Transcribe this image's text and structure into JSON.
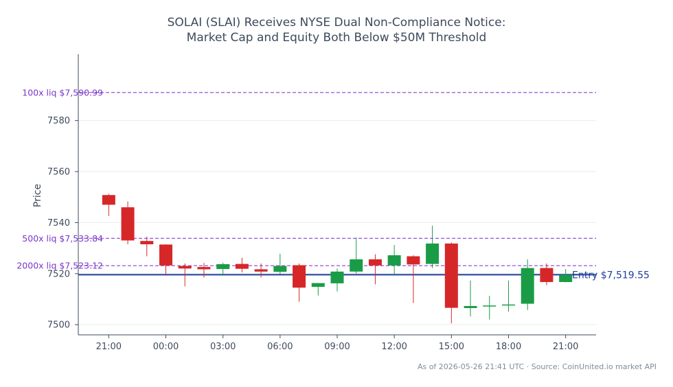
{
  "chart_data": {
    "type": "candlestick",
    "title_lines": [
      "SOLAI (SLAI) Receives NYSE Dual Non-Compliance Notice:",
      "Market Cap and Equity Both Below $50M Threshold"
    ],
    "xlabel": "",
    "ylabel": "Price",
    "ylim": [
      7496,
      7606
    ],
    "yticks": [
      7500,
      7520,
      7540,
      7560,
      7580
    ],
    "xlim": [
      -1.6,
      25.6
    ],
    "xticks": [
      {
        "i": 0,
        "label": "21:00"
      },
      {
        "i": 3,
        "label": "00:00"
      },
      {
        "i": 6,
        "label": "03:00"
      },
      {
        "i": 9,
        "label": "06:00"
      },
      {
        "i": 12,
        "label": "09:00"
      },
      {
        "i": 15,
        "label": "12:00"
      },
      {
        "i": 18,
        "label": "15:00"
      },
      {
        "i": 21,
        "label": "18:00"
      },
      {
        "i": 24,
        "label": "21:00"
      }
    ],
    "grid": true,
    "colors": {
      "up": "#1a9c47",
      "down": "#d62728",
      "entry": "#1f3f99",
      "liq": "#8b3fd1"
    },
    "candles": [
      {
        "o": 7550.8,
        "h": 7551.2,
        "l": 7542.6,
        "c": 7547.0
      },
      {
        "o": 7546.0,
        "h": 7548.3,
        "l": 7531.5,
        "c": 7533.0
      },
      {
        "o": 7532.8,
        "h": 7534.5,
        "l": 7526.8,
        "c": 7531.5
      },
      {
        "o": 7531.4,
        "h": 7531.5,
        "l": 7519.2,
        "c": 7523.2
      },
      {
        "o": 7523.0,
        "h": 7524.0,
        "l": 7515.0,
        "c": 7522.0
      },
      {
        "o": 7522.6,
        "h": 7524.2,
        "l": 7518.5,
        "c": 7521.7
      },
      {
        "o": 7521.8,
        "h": 7524.3,
        "l": 7519.2,
        "c": 7523.7
      },
      {
        "o": 7523.8,
        "h": 7526.2,
        "l": 7520.5,
        "c": 7521.9
      },
      {
        "o": 7521.7,
        "h": 7524.0,
        "l": 7518.5,
        "c": 7520.8
      },
      {
        "o": 7520.7,
        "h": 7527.8,
        "l": 7519.8,
        "c": 7523.0
      },
      {
        "o": 7523.3,
        "h": 7524.0,
        "l": 7509.0,
        "c": 7514.5
      },
      {
        "o": 7514.8,
        "h": 7516.3,
        "l": 7511.4,
        "c": 7516.3
      },
      {
        "o": 7516.2,
        "h": 7522.0,
        "l": 7513.0,
        "c": 7520.8
      },
      {
        "o": 7520.8,
        "h": 7534.2,
        "l": 7520.0,
        "c": 7525.6
      },
      {
        "o": 7525.6,
        "h": 7527.6,
        "l": 7515.8,
        "c": 7523.2
      },
      {
        "o": 7523.2,
        "h": 7531.2,
        "l": 7519.2,
        "c": 7527.2
      },
      {
        "o": 7526.8,
        "h": 7527.2,
        "l": 7508.5,
        "c": 7523.6
      },
      {
        "o": 7523.8,
        "h": 7538.8,
        "l": 7522.2,
        "c": 7531.8
      },
      {
        "o": 7531.8,
        "h": 7532.2,
        "l": 7500.5,
        "c": 7506.6
      },
      {
        "o": 7506.5,
        "h": 7517.3,
        "l": 7503.2,
        "c": 7507.3
      },
      {
        "o": 7507.1,
        "h": 7511.3,
        "l": 7502.0,
        "c": 7507.5
      },
      {
        "o": 7507.6,
        "h": 7517.3,
        "l": 7505.1,
        "c": 7507.9
      },
      {
        "o": 7508.2,
        "h": 7525.6,
        "l": 7505.7,
        "c": 7522.2
      },
      {
        "o": 7522.2,
        "h": 7524.0,
        "l": 7515.5,
        "c": 7516.7
      },
      {
        "o": 7516.7,
        "h": 7521.8,
        "l": 7516.6,
        "c": 7519.5
      }
    ],
    "lines": [
      {
        "label": "100x liq $7,590.99",
        "y": 7590.99,
        "kind": "liq"
      },
      {
        "label": "500x liq $7,533.84",
        "y": 7533.84,
        "kind": "liq"
      },
      {
        "label": "2000x liq $7,523.12",
        "y": 7523.12,
        "kind": "liq"
      },
      {
        "label": "Entry $7,519.55",
        "y": 7519.55,
        "kind": "entry"
      }
    ],
    "footer": "As of 2026-05-26 21:41 UTC · Source: CoinUnited.io market API"
  }
}
